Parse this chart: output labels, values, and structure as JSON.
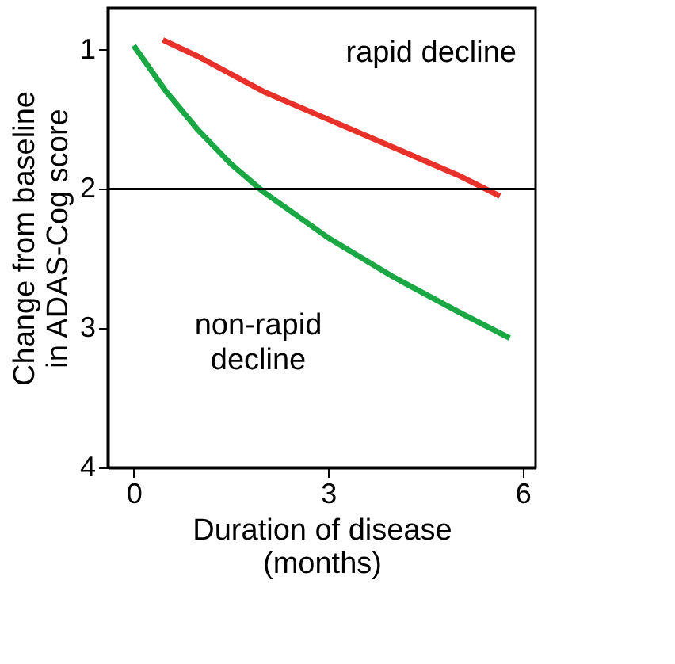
{
  "chart_data": {
    "type": "line",
    "xlabel": "Duration of disease\n(months)",
    "ylabel": "Change from baseline\nin ADAS-Cog score",
    "xlim": [
      -0.4,
      6.2
    ],
    "ylim": [
      4,
      0.7
    ],
    "xticks": [
      0,
      3,
      6
    ],
    "yticks": [
      1,
      2,
      3,
      4
    ],
    "grid": false,
    "marker": "none",
    "line_style": "solid",
    "ref_lines": [
      {
        "axis": "y",
        "value": 2,
        "color": "#000000"
      }
    ],
    "series": [
      {
        "name": "rapid decline",
        "color": "#e8312a",
        "x": [
          0.45,
          1,
          2,
          3,
          4,
          5,
          5.65
        ],
        "values": [
          0.93,
          1.05,
          1.3,
          1.5,
          1.7,
          1.9,
          2.05
        ]
      },
      {
        "name": "non-rapid decline",
        "color": "#1aa844",
        "x": [
          0,
          0.5,
          1,
          1.5,
          2,
          3,
          4,
          5,
          5.8
        ],
        "values": [
          0.97,
          1.3,
          1.58,
          1.82,
          2.02,
          2.35,
          2.63,
          2.88,
          3.07
        ]
      }
    ]
  }
}
